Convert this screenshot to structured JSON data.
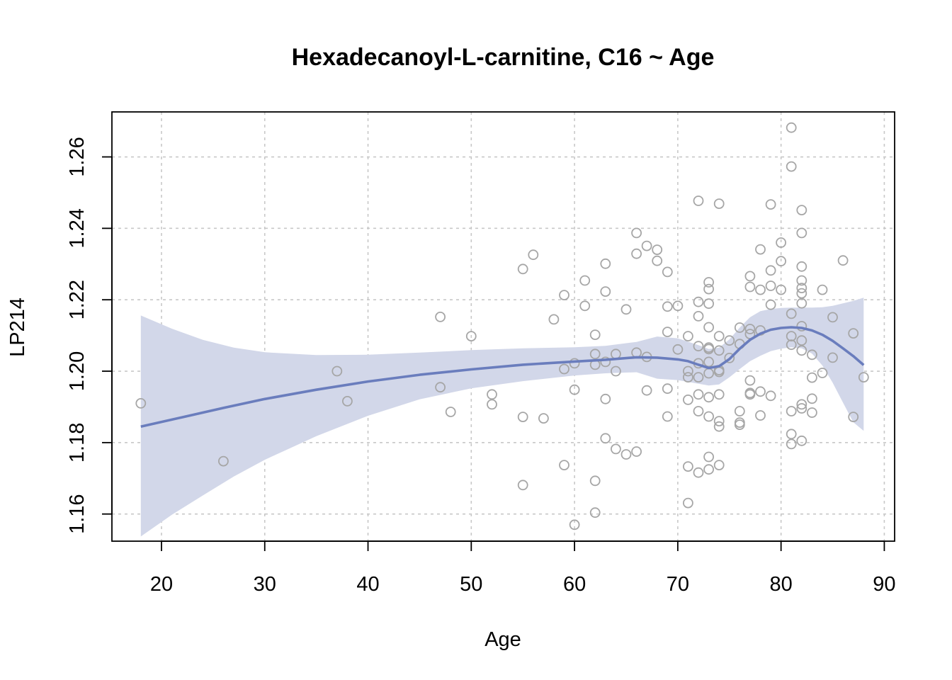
{
  "chart_data": {
    "type": "scatter",
    "title": "Hexadecanoyl-L-carnitine, C16 ~ Age",
    "xlabel": "Age",
    "ylabel": "LP214",
    "xlim": [
      15.2,
      91.0
    ],
    "ylim": [
      1.1524,
      1.2726
    ],
    "xticks": [
      20,
      30,
      40,
      50,
      60,
      70,
      80,
      90
    ],
    "yticks": [
      1.16,
      1.18,
      1.2,
      1.22,
      1.24,
      1.26
    ],
    "ytick_labels": [
      "1.16",
      "1.18",
      "1.20",
      "1.22",
      "1.24",
      "1.26"
    ],
    "grid": true,
    "colors": {
      "points": "#a6a6a6",
      "fit": "#6a7dbd",
      "band": "#d2d7e9",
      "grid": "#c8c8c8"
    },
    "points": [
      [
        18,
        1.191
      ],
      [
        26,
        1.1748
      ],
      [
        37,
        1.2
      ],
      [
        38,
        1.1916
      ],
      [
        47,
        1.2152
      ],
      [
        47,
        1.1955
      ],
      [
        48,
        1.1886
      ],
      [
        50,
        1.2098
      ],
      [
        52,
        1.1935
      ],
      [
        52,
        1.1907
      ],
      [
        55,
        1.2286
      ],
      [
        55,
        1.1872
      ],
      [
        55,
        1.1681
      ],
      [
        56,
        1.2326
      ],
      [
        57,
        1.1868
      ],
      [
        58,
        1.2145
      ],
      [
        59,
        1.2213
      ],
      [
        59,
        1.2006
      ],
      [
        59,
        1.1737
      ],
      [
        60,
        1.2022
      ],
      [
        60,
        1.1948
      ],
      [
        60,
        1.157
      ],
      [
        61,
        1.2254
      ],
      [
        61,
        1.2183
      ],
      [
        62,
        1.2102
      ],
      [
        62,
        1.2048
      ],
      [
        62,
        1.2018
      ],
      [
        62,
        1.1693
      ],
      [
        62,
        1.1604
      ],
      [
        63,
        1.2301
      ],
      [
        63,
        1.2223
      ],
      [
        63,
        1.2026
      ],
      [
        63,
        1.1922
      ],
      [
        63,
        1.1812
      ],
      [
        64,
        1.2048
      ],
      [
        64,
        1.2
      ],
      [
        64,
        1.1782
      ],
      [
        65,
        1.2173
      ],
      [
        65,
        1.1767
      ],
      [
        66,
        1.2387
      ],
      [
        66,
        1.2329
      ],
      [
        66,
        1.2052
      ],
      [
        66,
        1.1775
      ],
      [
        67,
        1.2351
      ],
      [
        67,
        1.204
      ],
      [
        67,
        1.1946
      ],
      [
        68,
        1.234
      ],
      [
        68,
        1.2309
      ],
      [
        69,
        1.2278
      ],
      [
        69,
        1.2181
      ],
      [
        69,
        1.211
      ],
      [
        69,
        1.1951
      ],
      [
        69,
        1.1873
      ],
      [
        70,
        1.2183
      ],
      [
        70,
        1.2061
      ],
      [
        71,
        1.2098
      ],
      [
        71,
        1.2
      ],
      [
        71,
        1.1983
      ],
      [
        71,
        1.192
      ],
      [
        71,
        1.1733
      ],
      [
        71,
        1.1631
      ],
      [
        72,
        1.2477
      ],
      [
        72,
        1.2194
      ],
      [
        72,
        1.2154
      ],
      [
        72,
        1.207
      ],
      [
        72,
        1.2022
      ],
      [
        72,
        1.1983
      ],
      [
        72,
        1.1935
      ],
      [
        72,
        1.1888
      ],
      [
        72,
        1.1716
      ],
      [
        73,
        1.2249
      ],
      [
        73,
        1.223
      ],
      [
        73,
        1.2189
      ],
      [
        73,
        1.2123
      ],
      [
        73,
        1.2066
      ],
      [
        73,
        1.2062
      ],
      [
        73,
        1.2026
      ],
      [
        73,
        1.1994
      ],
      [
        73,
        1.1927
      ],
      [
        73,
        1.1873
      ],
      [
        73,
        1.176
      ],
      [
        73,
        1.1725
      ],
      [
        74,
        1.2469
      ],
      [
        74,
        1.2098
      ],
      [
        74,
        1.2058
      ],
      [
        74,
        1.2003
      ],
      [
        74,
        1.1998
      ],
      [
        74,
        1.1935
      ],
      [
        74,
        1.186
      ],
      [
        74,
        1.1845
      ],
      [
        74,
        1.1737
      ],
      [
        75,
        1.2086
      ],
      [
        75,
        1.2037
      ],
      [
        76,
        1.2122
      ],
      [
        76,
        1.2076
      ],
      [
        76,
        1.1888
      ],
      [
        76,
        1.1856
      ],
      [
        76,
        1.185
      ],
      [
        77,
        1.2266
      ],
      [
        77,
        1.2236
      ],
      [
        77,
        1.2118
      ],
      [
        77,
        1.2104
      ],
      [
        77,
        1.1974
      ],
      [
        77,
        1.1939
      ],
      [
        77,
        1.1935
      ],
      [
        78,
        1.2341
      ],
      [
        78,
        1.2228
      ],
      [
        78,
        1.2114
      ],
      [
        78,
        1.1943
      ],
      [
        78,
        1.1876
      ],
      [
        79,
        1.2467
      ],
      [
        79,
        1.2282
      ],
      [
        79,
        1.2239
      ],
      [
        79,
        1.2186
      ],
      [
        79,
        1.1931
      ],
      [
        80,
        1.236
      ],
      [
        80,
        1.2308
      ],
      [
        80,
        1.2228
      ],
      [
        81,
        1.2682
      ],
      [
        81,
        1.2573
      ],
      [
        81,
        1.2161
      ],
      [
        81,
        1.2098
      ],
      [
        81,
        1.2074
      ],
      [
        81,
        1.1888
      ],
      [
        81,
        1.1824
      ],
      [
        81,
        1.1796
      ],
      [
        82,
        1.2451
      ],
      [
        82,
        1.2387
      ],
      [
        82,
        1.2293
      ],
      [
        82,
        1.2254
      ],
      [
        82,
        1.2233
      ],
      [
        82,
        1.2218
      ],
      [
        82,
        1.219
      ],
      [
        82,
        1.2126
      ],
      [
        82,
        1.2086
      ],
      [
        82,
        1.2058
      ],
      [
        82,
        1.1907
      ],
      [
        82,
        1.1896
      ],
      [
        82,
        1.1805
      ],
      [
        83,
        1.2046
      ],
      [
        83,
        1.1982
      ],
      [
        83,
        1.1923
      ],
      [
        83,
        1.1884
      ],
      [
        84,
        1.2228
      ],
      [
        84,
        1.1995
      ],
      [
        85,
        1.2151
      ],
      [
        85,
        1.2038
      ],
      [
        86,
        1.231
      ],
      [
        87,
        1.2106
      ],
      [
        87,
        1.1872
      ],
      [
        88,
        1.1983
      ]
    ],
    "fit_line": [
      [
        18,
        1.1845
      ],
      [
        22,
        1.1871
      ],
      [
        26,
        1.1897
      ],
      [
        30,
        1.1922
      ],
      [
        35,
        1.1948
      ],
      [
        40,
        1.1971
      ],
      [
        45,
        1.199
      ],
      [
        50,
        1.2005
      ],
      [
        55,
        1.2018
      ],
      [
        60,
        1.2027
      ],
      [
        63,
        1.2032
      ],
      [
        66,
        1.2039
      ],
      [
        68,
        1.2038
      ],
      [
        70,
        1.2033
      ],
      [
        71,
        1.2028
      ],
      [
        72,
        1.2018
      ],
      [
        73,
        1.2009
      ],
      [
        74,
        1.2014
      ],
      [
        75,
        1.2034
      ],
      [
        76,
        1.2063
      ],
      [
        77,
        1.2088
      ],
      [
        78,
        1.2105
      ],
      [
        79,
        1.2116
      ],
      [
        80,
        1.2121
      ],
      [
        81,
        1.2123
      ],
      [
        82,
        1.2121
      ],
      [
        83,
        1.2114
      ],
      [
        84,
        1.2102
      ],
      [
        85,
        1.2085
      ],
      [
        86,
        1.2064
      ],
      [
        87,
        1.2042
      ],
      [
        88,
        1.2017
      ]
    ],
    "band_upper": [
      [
        18,
        1.2156
      ],
      [
        21,
        1.2119
      ],
      [
        24,
        1.2088
      ],
      [
        27,
        1.2066
      ],
      [
        30,
        1.2053
      ],
      [
        35,
        1.2045
      ],
      [
        40,
        1.2046
      ],
      [
        45,
        1.2052
      ],
      [
        50,
        1.2059
      ],
      [
        55,
        1.2064
      ],
      [
        60,
        1.2067
      ],
      [
        63,
        1.2071
      ],
      [
        66,
        1.2082
      ],
      [
        68,
        1.2097
      ],
      [
        70,
        1.2092
      ],
      [
        72,
        1.2073
      ],
      [
        73,
        1.2062
      ],
      [
        74,
        1.2066
      ],
      [
        75,
        1.2089
      ],
      [
        76,
        1.2122
      ],
      [
        77,
        1.2151
      ],
      [
        78,
        1.2168
      ],
      [
        79,
        1.2174
      ],
      [
        80,
        1.2177
      ],
      [
        81,
        1.2178
      ],
      [
        82,
        1.2178
      ],
      [
        83,
        1.2178
      ],
      [
        84,
        1.2179
      ],
      [
        85,
        1.2183
      ],
      [
        86,
        1.219
      ],
      [
        87,
        1.2197
      ],
      [
        88,
        1.2206
      ]
    ],
    "band_lower": [
      [
        18,
        1.1537
      ],
      [
        21,
        1.1598
      ],
      [
        24,
        1.1652
      ],
      [
        27,
        1.1705
      ],
      [
        30,
        1.1752
      ],
      [
        35,
        1.1818
      ],
      [
        40,
        1.1875
      ],
      [
        45,
        1.1921
      ],
      [
        50,
        1.1952
      ],
      [
        55,
        1.1972
      ],
      [
        60,
        1.1988
      ],
      [
        63,
        1.1994
      ],
      [
        66,
        1.1997
      ],
      [
        68,
        1.1979
      ],
      [
        70,
        1.1975
      ],
      [
        72,
        1.1965
      ],
      [
        73,
        1.196
      ],
      [
        74,
        1.1963
      ],
      [
        75,
        1.1983
      ],
      [
        76,
        1.2006
      ],
      [
        77,
        1.2028
      ],
      [
        78,
        1.2043
      ],
      [
        79,
        1.2056
      ],
      [
        80,
        1.2063
      ],
      [
        81,
        1.2067
      ],
      [
        82,
        1.2064
      ],
      [
        83,
        1.2049
      ],
      [
        84,
        1.2016
      ],
      [
        85,
        1.1968
      ],
      [
        86,
        1.1912
      ],
      [
        87,
        1.1857
      ],
      [
        88,
        1.1833
      ]
    ]
  }
}
